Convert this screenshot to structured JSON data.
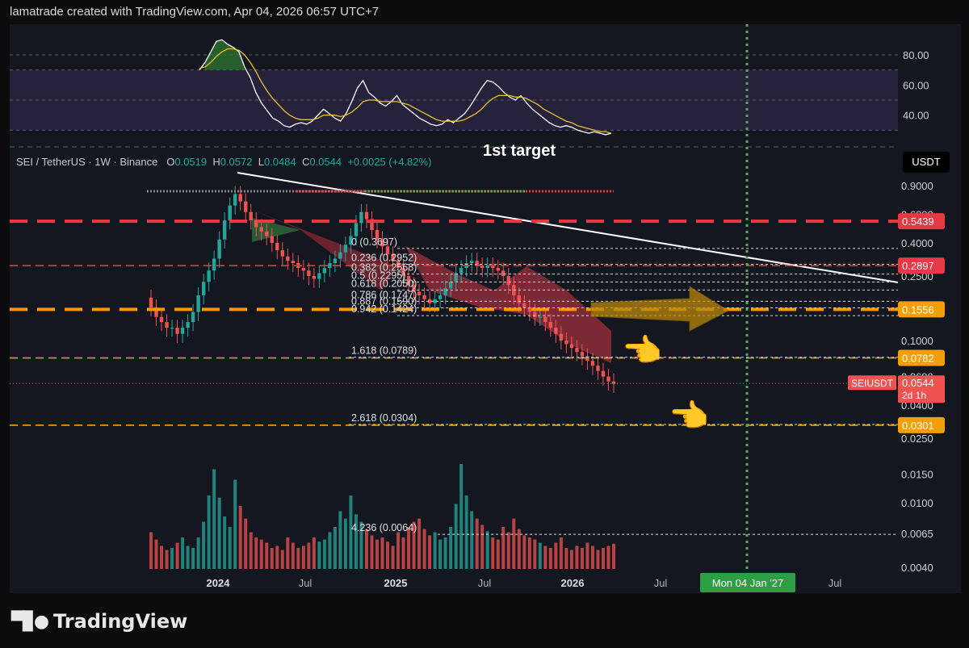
{
  "header": {
    "attribution": "lamatrade created with TradingView.com, Apr 04, 2026 06:57 UTC+7"
  },
  "footer": {
    "brand": "TradingView"
  },
  "legend": {
    "symbol": "SEI / TetherUS · 1W · Binance",
    "o_label": "O",
    "o": "0.0519",
    "h_label": "H",
    "h": "0.0572",
    "l_label": "L",
    "l": "0.0484",
    "c_label": "C",
    "c": "0.0544",
    "change": "+0.0025 (+4.82%)"
  },
  "currency_button": "USDT",
  "annotation_target": "1st target",
  "colors": {
    "bull": "#26a69a",
    "bear": "#ef5350",
    "panel_bg": "#141620",
    "frame_bg": "#0c0c0f",
    "red_dash": "#f23645",
    "orange_dash": "#ff9800",
    "green_dotted": "#4caf50",
    "rsi": "#ffffff",
    "rsi_ma": "#e6c229",
    "rsi_band": "#2a2542"
  },
  "chart_data": [
    {
      "type": "line",
      "pane": "oscillator",
      "yticks": [
        "80.00",
        "60.00",
        "40.00"
      ],
      "ylim": [
        20,
        95
      ],
      "band": [
        30,
        70
      ],
      "series": [
        {
          "values": [
            70,
            75,
            82,
            89,
            90,
            87,
            85,
            82,
            72,
            65,
            55,
            48,
            43,
            38,
            36,
            33,
            32,
            34,
            35,
            34,
            36,
            40,
            44,
            41,
            38,
            36,
            41,
            49,
            58,
            63,
            55,
            52,
            48,
            46,
            49,
            53,
            47,
            44,
            41,
            38,
            36,
            34,
            33,
            34,
            37,
            35,
            38,
            41,
            46,
            52,
            58,
            63,
            62,
            59,
            55,
            52,
            50,
            53,
            48,
            44,
            41,
            38,
            35,
            33,
            32,
            33,
            32,
            30,
            29,
            28,
            29,
            28,
            27,
            28
          ]
        },
        {
          "values": [
            71,
            72,
            75,
            79,
            82,
            84,
            84,
            83,
            80,
            75,
            69,
            62,
            56,
            51,
            47,
            43,
            40,
            38,
            37,
            37,
            37,
            38,
            40,
            40,
            40,
            39,
            40,
            42,
            45,
            49,
            50,
            50,
            49,
            49,
            49,
            49,
            48,
            47,
            45,
            43,
            41,
            39,
            37,
            36,
            36,
            36,
            36,
            37,
            39,
            41,
            44,
            48,
            51,
            53,
            53,
            53,
            52,
            52,
            51,
            49,
            47,
            44,
            42,
            40,
            38,
            36,
            35,
            33,
            32,
            31,
            30,
            29,
            29,
            28
          ]
        }
      ]
    },
    {
      "type": "candlestick",
      "pane": "price",
      "scale": "log",
      "xticks": [
        "2024",
        "Jul",
        "2025",
        "Jul",
        "2026",
        "Jul",
        "Mon 04 Jan '27",
        "Jul"
      ],
      "yticks": [
        "0.9000",
        "0.6000",
        "0.4000",
        "0.2500",
        "0.1000",
        "0.0600",
        "0.0400",
        "0.0250",
        "0.0150",
        "0.0100",
        "0.0065",
        "0.0040"
      ],
      "ohlc_close": [
        0.16,
        0.14,
        0.13,
        0.12,
        0.12,
        0.11,
        0.12,
        0.13,
        0.15,
        0.19,
        0.23,
        0.27,
        0.32,
        0.42,
        0.55,
        0.68,
        0.8,
        0.72,
        0.62,
        0.55,
        0.5,
        0.47,
        0.44,
        0.4,
        0.36,
        0.33,
        0.31,
        0.3,
        0.28,
        0.27,
        0.25,
        0.24,
        0.26,
        0.28,
        0.3,
        0.32,
        0.35,
        0.39,
        0.44,
        0.53,
        0.62,
        0.56,
        0.48,
        0.42,
        0.38,
        0.34,
        0.31,
        0.28,
        0.25,
        0.22,
        0.2,
        0.19,
        0.18,
        0.17,
        0.18,
        0.19,
        0.21,
        0.23,
        0.26,
        0.28,
        0.3,
        0.31,
        0.29,
        0.28,
        0.29,
        0.28,
        0.27,
        0.25,
        0.22,
        0.19,
        0.17,
        0.16,
        0.15,
        0.14,
        0.14,
        0.13,
        0.12,
        0.11,
        0.1,
        0.095,
        0.09,
        0.085,
        0.08,
        0.075,
        0.07,
        0.065,
        0.06,
        0.056,
        0.054
      ],
      "volume": [
        35,
        28,
        22,
        18,
        20,
        25,
        30,
        22,
        20,
        30,
        45,
        70,
        95,
        68,
        50,
        40,
        85,
        60,
        48,
        35,
        30,
        28,
        25,
        20,
        22,
        18,
        30,
        25,
        20,
        22,
        25,
        30,
        26,
        28,
        35,
        40,
        55,
        48,
        70,
        52,
        45,
        38,
        32,
        28,
        30,
        26,
        22,
        35,
        30,
        40,
        45,
        48,
        38,
        32,
        35,
        28,
        30,
        40,
        62,
        100,
        70,
        55,
        48,
        42,
        36,
        30,
        28,
        40,
        35,
        48,
        38,
        32,
        30,
        28,
        25,
        22,
        20,
        25,
        30,
        20,
        18,
        22,
        20,
        25,
        22,
        18,
        20,
        22,
        24
      ],
      "horizontal_levels": [
        {
          "label": "0.5439",
          "value": 0.5439,
          "style": "red-dash-heavy"
        },
        {
          "label": "0.2897",
          "value": 0.2897,
          "style": "red-dash"
        },
        {
          "label": "0.1556",
          "value": 0.1556,
          "style": "orange-dash-heavy"
        },
        {
          "label": "0.0782",
          "value": 0.0782,
          "style": "orange-dash"
        },
        {
          "label": "0.0301",
          "value": 0.0301,
          "style": "orange-dash"
        }
      ],
      "last_price": {
        "symbol": "SEIUSDT",
        "value": "0.0544",
        "countdown": "2d 1h"
      },
      "fib_levels": [
        {
          "label": "0 (0.3697)",
          "value": 0.3697
        },
        {
          "label": "0.236 (0.2952)",
          "value": 0.2952
        },
        {
          "label": "0.382 (0.2568)",
          "value": 0.2568
        },
        {
          "label": "0.5 (0.2295)",
          "value": 0.2295
        },
        {
          "label": "0.618 (0.2050)",
          "value": 0.205
        },
        {
          "label": "0.786 (0.1747)",
          "value": 0.1747
        },
        {
          "label": "0.887 (0.1590)",
          "value": 0.159
        },
        {
          "label": "0.942 (0.1424)",
          "value": 0.1424
        },
        {
          "label": "1.618 (0.0789)",
          "value": 0.0789
        },
        {
          "label": "2.618 (0.0304)",
          "value": 0.0304
        },
        {
          "label": "4.236 (0.0064)",
          "value": 0.0064
        }
      ]
    }
  ]
}
